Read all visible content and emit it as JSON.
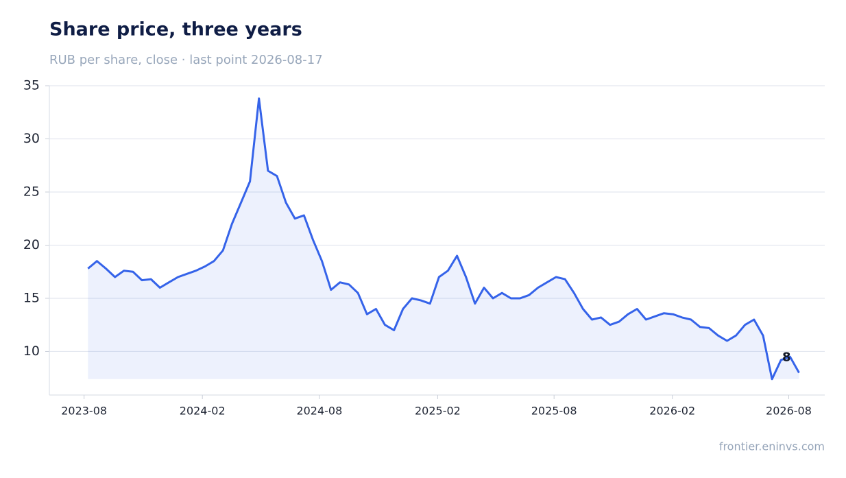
{
  "chart_data": {
    "type": "line",
    "title": "Share price, three years",
    "subtitle": "RUB per share, close · last point 2026-08-17",
    "source": "frontier.eninvs.com",
    "annotation": "8",
    "color": "#3563e9",
    "grid": true,
    "x": [
      "2023-08-07",
      "2023-08-21",
      "2023-09-04",
      "2023-09-18",
      "2023-10-02",
      "2023-10-16",
      "2023-10-30",
      "2023-11-13",
      "2023-11-27",
      "2023-12-11",
      "2023-12-25",
      "2024-01-08",
      "2024-01-22",
      "2024-02-05",
      "2024-02-19",
      "2024-03-04",
      "2024-03-18",
      "2024-04-01",
      "2024-04-15",
      "2024-04-29",
      "2024-05-13",
      "2024-05-27",
      "2024-06-10",
      "2024-06-24",
      "2024-07-08",
      "2024-07-22",
      "2024-08-05",
      "2024-08-19",
      "2024-09-02",
      "2024-09-16",
      "2024-09-30",
      "2024-10-14",
      "2024-10-28",
      "2024-11-11",
      "2024-11-25",
      "2024-12-09",
      "2024-12-23",
      "2025-01-06",
      "2025-01-20",
      "2025-02-03",
      "2025-02-17",
      "2025-03-03",
      "2025-03-17",
      "2025-03-31",
      "2025-04-14",
      "2025-04-28",
      "2025-05-12",
      "2025-05-26",
      "2025-06-09",
      "2025-06-23",
      "2025-07-07",
      "2025-07-21",
      "2025-08-04",
      "2025-08-18",
      "2025-09-01",
      "2025-09-15",
      "2025-09-29",
      "2025-10-13",
      "2025-10-27",
      "2025-11-10",
      "2025-11-24",
      "2025-12-08",
      "2025-12-22",
      "2026-01-05",
      "2026-01-19",
      "2026-02-02",
      "2026-02-16",
      "2026-03-02",
      "2026-03-16",
      "2026-03-30",
      "2026-04-13",
      "2026-04-27",
      "2026-05-11",
      "2026-05-25",
      "2026-06-08",
      "2026-06-22",
      "2026-07-06",
      "2026-07-20",
      "2026-08-03",
      "2026-08-17"
    ],
    "values": [
      17.8,
      18.5,
      17.8,
      17.0,
      17.6,
      17.5,
      16.7,
      16.8,
      16.0,
      16.5,
      17.0,
      17.3,
      17.6,
      18.0,
      18.5,
      19.5,
      22.0,
      24.0,
      26.0,
      33.8,
      27.0,
      26.5,
      24.0,
      22.5,
      22.8,
      20.5,
      18.5,
      15.8,
      16.5,
      16.3,
      15.5,
      13.5,
      14.0,
      12.5,
      12.0,
      14.0,
      15.0,
      14.8,
      14.5,
      17.0,
      17.6,
      19.0,
      17.0,
      14.5,
      16.0,
      15.0,
      15.5,
      15.0,
      15.0,
      15.3,
      16.0,
      16.5,
      17.0,
      16.8,
      15.5,
      14.0,
      13.0,
      13.2,
      12.5,
      12.8,
      13.5,
      14.0,
      13.0,
      13.3,
      13.6,
      13.5,
      13.2,
      13.0,
      12.3,
      12.2,
      11.5,
      11.0,
      11.5,
      12.5,
      13.0,
      11.5,
      7.4,
      9.2,
      9.5,
      8.0
    ],
    "xlim": [
      "2023-06-08",
      "2026-09-26"
    ],
    "xticks": [
      {
        "value": "2023-08-01",
        "label": "2023-08"
      },
      {
        "value": "2024-02-01",
        "label": "2024-02"
      },
      {
        "value": "2024-08-01",
        "label": "2024-08"
      },
      {
        "value": "2025-02-01",
        "label": "2025-02"
      },
      {
        "value": "2025-08-01",
        "label": "2025-08"
      },
      {
        "value": "2026-02-01",
        "label": "2026-02"
      },
      {
        "value": "2026-08-01",
        "label": "2026-08"
      }
    ],
    "ylim": [
      5.9,
      35
    ],
    "yticks": [
      10,
      15,
      20,
      25,
      30,
      35
    ]
  }
}
